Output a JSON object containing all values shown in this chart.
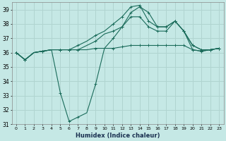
{
  "xlabel": "Humidex (Indice chaleur)",
  "ylabel": "",
  "xlim": [
    -0.5,
    23.5
  ],
  "ylim": [
    31,
    39.5
  ],
  "yticks": [
    31,
    32,
    33,
    34,
    35,
    36,
    37,
    38,
    39
  ],
  "xticks": [
    0,
    1,
    2,
    3,
    4,
    5,
    6,
    7,
    8,
    9,
    10,
    11,
    12,
    13,
    14,
    15,
    16,
    17,
    18,
    19,
    20,
    21,
    22,
    23
  ],
  "background_color": "#c5e8e5",
  "grid_color": "#b0d4d0",
  "line_color": "#1a6b5a",
  "lines": [
    {
      "x": [
        0,
        1,
        2,
        3,
        4,
        5,
        6,
        7,
        8,
        9,
        10,
        11,
        12,
        13,
        14,
        15,
        16,
        17,
        18,
        19,
        20,
        21,
        22,
        23
      ],
      "y": [
        36.0,
        35.5,
        36.0,
        36.1,
        36.2,
        36.2,
        36.2,
        36.2,
        36.2,
        36.3,
        36.3,
        36.3,
        36.4,
        36.5,
        36.5,
        36.5,
        36.5,
        36.5,
        36.5,
        36.5,
        36.2,
        36.1,
        36.2,
        36.3
      ],
      "marker": true
    },
    {
      "x": [
        0,
        1,
        2,
        3,
        4,
        5,
        6,
        7,
        8,
        9,
        10,
        11,
        12,
        13,
        14,
        15,
        16,
        17,
        18,
        19,
        20,
        21,
        22,
        23
      ],
      "y": [
        36.0,
        35.5,
        36.0,
        36.1,
        36.2,
        33.2,
        31.2,
        31.5,
        31.8,
        33.8,
        36.3,
        37.0,
        37.8,
        38.8,
        39.2,
        38.8,
        37.8,
        37.8,
        38.2,
        37.5,
        36.2,
        36.1,
        36.2,
        36.3
      ],
      "marker": true
    },
    {
      "x": [
        0,
        1,
        2,
        3,
        4,
        5,
        6,
        7,
        8,
        9,
        10,
        11,
        12,
        13,
        14,
        15,
        16,
        17,
        18,
        19,
        20,
        21,
        22,
        23
      ],
      "y": [
        36.0,
        35.5,
        36.0,
        36.1,
        36.2,
        36.2,
        36.2,
        36.2,
        36.5,
        36.8,
        37.3,
        37.5,
        37.8,
        38.5,
        38.5,
        37.8,
        37.5,
        37.5,
        38.2,
        37.5,
        36.5,
        36.2,
        36.2,
        36.3
      ],
      "marker": true
    },
    {
      "x": [
        0,
        1,
        2,
        3,
        4,
        5,
        6,
        7,
        8,
        9,
        10,
        11,
        12,
        13,
        14,
        15,
        16,
        17,
        18,
        19,
        20,
        21,
        22,
        23
      ],
      "y": [
        36.0,
        35.5,
        36.0,
        36.1,
        36.2,
        36.2,
        36.2,
        36.5,
        36.8,
        37.2,
        37.5,
        38.0,
        38.5,
        39.2,
        39.3,
        38.2,
        37.8,
        37.8,
        38.2,
        37.5,
        36.5,
        36.2,
        36.2,
        36.3
      ],
      "marker": true
    }
  ]
}
